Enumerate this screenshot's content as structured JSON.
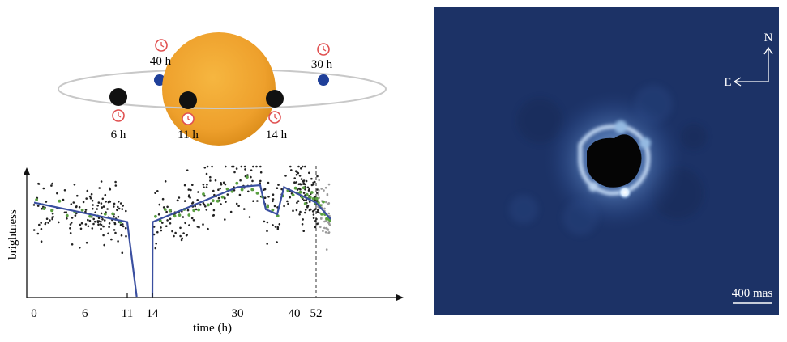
{
  "orbit_diagram": {
    "labels": [
      {
        "id": "t6",
        "text": "6 h"
      },
      {
        "id": "t11",
        "text": "11 h"
      },
      {
        "id": "t14",
        "text": "14 h"
      },
      {
        "id": "t30",
        "text": "30 h"
      },
      {
        "id": "t40",
        "text": "40 h"
      }
    ],
    "colors": {
      "star": "#f0a030",
      "orbit": "#c8c8c8",
      "planet_transit": "#111111",
      "planet_hidden": "#1f3f99",
      "clock": "#e05050"
    },
    "icon": "clock-icon"
  },
  "chart_data": {
    "type": "scatter",
    "xlabel": "time (h)",
    "ylabel": "brightness",
    "x_tick_labels": [
      "0",
      "6",
      "11",
      "14",
      "30",
      "40",
      "52"
    ],
    "x_ticks": [
      0,
      6,
      11,
      14,
      30,
      40,
      52
    ],
    "axis_layout": "broken: 0–11 and 14–52, then continuing",
    "model_curve": {
      "color": "#3a4fa0",
      "segments": [
        [
          [
            0,
            0.62
          ],
          [
            11,
            0.42
          ],
          [
            11.05,
            -0.35
          ]
        ],
        [
          [
            14,
            -0.35
          ],
          [
            14.05,
            0.42
          ],
          [
            30,
            0.78
          ],
          [
            34,
            0.8
          ],
          [
            35,
            0.55
          ],
          [
            37,
            0.5
          ],
          [
            38.2,
            0.78
          ],
          [
            52,
            0.62
          ],
          [
            60,
            0.45
          ]
        ]
      ]
    },
    "binned_points_color": "#5aa040",
    "raw_points_color": "#222222",
    "vertical_dashed_marker_x": 52
  },
  "image_panel": {
    "compass": {
      "north": "N",
      "east": "E"
    },
    "scalebar_label": "400 mas",
    "background": "#1c3266"
  }
}
